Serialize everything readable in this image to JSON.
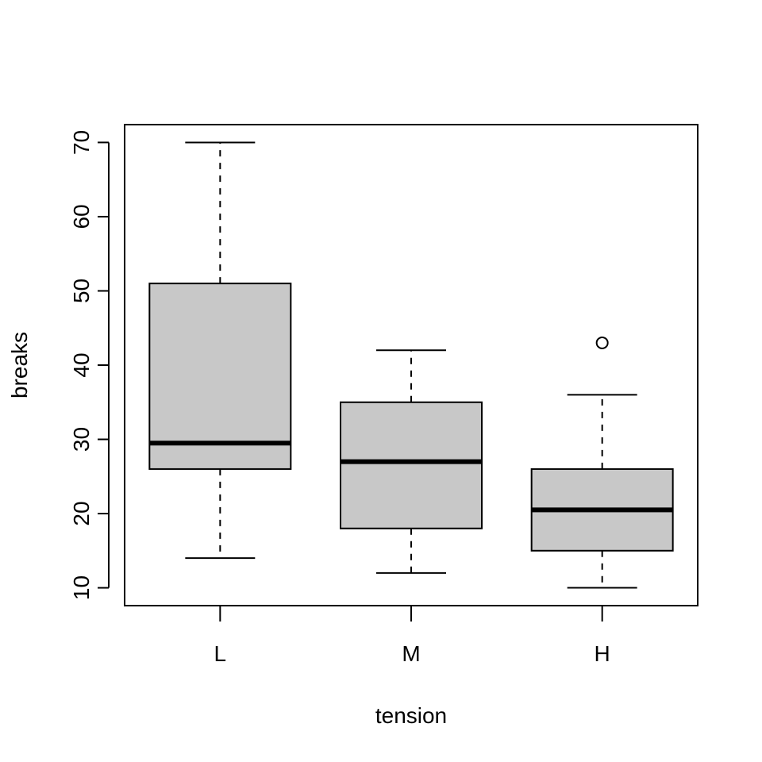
{
  "chart_data": {
    "type": "boxplot",
    "title": "",
    "xlabel": "tension",
    "ylabel": "breaks",
    "ylim": [
      7.6,
      72.4
    ],
    "yticks": [
      10,
      20,
      30,
      40,
      50,
      60,
      70
    ],
    "grid": false,
    "box_fill": "#c8c8c8",
    "categories": [
      "L",
      "M",
      "H"
    ],
    "boxes": [
      {
        "category": "L",
        "whisker_low": 14,
        "q1": 26,
        "median": 29.5,
        "q3": 51,
        "whisker_high": 70,
        "outliers": []
      },
      {
        "category": "M",
        "whisker_low": 12,
        "q1": 18,
        "median": 27,
        "q3": 35,
        "whisker_high": 42,
        "outliers": []
      },
      {
        "category": "H",
        "whisker_low": 10,
        "q1": 15,
        "median": 20.5,
        "q3": 26,
        "whisker_high": 36,
        "outliers": [
          43
        ]
      }
    ]
  }
}
